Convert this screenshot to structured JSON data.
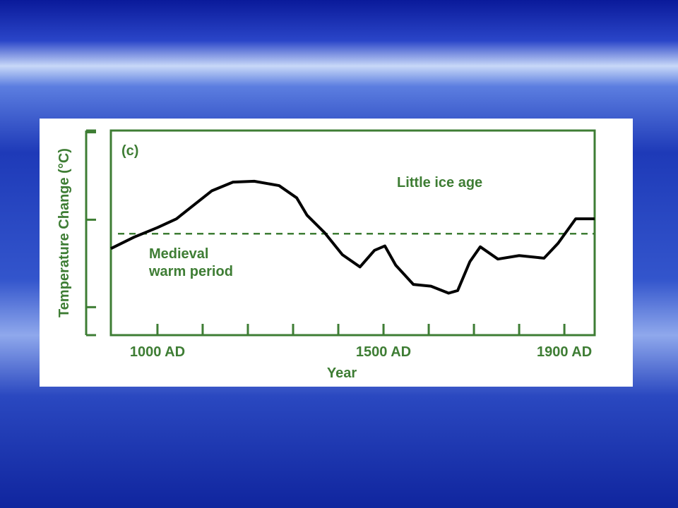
{
  "chart_data": {
    "type": "line",
    "panel_label": "(c)",
    "xlabel": "Year",
    "ylabel": "Temperature Change (°C)",
    "annotations": [
      "Little ice age",
      "Medieval",
      "warm period"
    ],
    "x": [
      897,
      948,
      1000,
      1042,
      1081,
      1120,
      1167,
      1214,
      1269,
      1308,
      1331,
      1370,
      1409,
      1448,
      1480,
      1503,
      1527,
      1566,
      1605,
      1644,
      1664,
      1691,
      1714,
      1753,
      1800,
      1855,
      1886,
      1925,
      1967
    ],
    "series": [
      {
        "color": "#000000",
        "values": [
          -0.33,
          -0.2,
          -0.09,
          0.01,
          0.17,
          0.33,
          0.43,
          0.44,
          0.39,
          0.25,
          0.05,
          -0.15,
          -0.4,
          -0.54,
          -0.35,
          -0.3,
          -0.52,
          -0.74,
          -0.76,
          -0.84,
          -0.81,
          -0.48,
          -0.31,
          -0.45,
          -0.41,
          -0.44,
          -0.27,
          0.01,
          0.01
        ]
      }
    ],
    "reference_line": -0.16,
    "xlim": [
      897,
      1967
    ],
    "ylim": [
      -1.32,
      1.02
    ],
    "xticks": [
      {
        "value": 1000,
        "label": "1000 AD"
      },
      {
        "value": 1500,
        "label": "1500 AD"
      },
      {
        "value": 1900,
        "label": "1900 AD"
      }
    ],
    "xminor_ticks": [
      1100,
      1200,
      1300,
      1400,
      1600,
      1700,
      1800
    ],
    "yticks": [
      -1,
      0,
      1
    ],
    "axis_color": "#3e7d34"
  }
}
